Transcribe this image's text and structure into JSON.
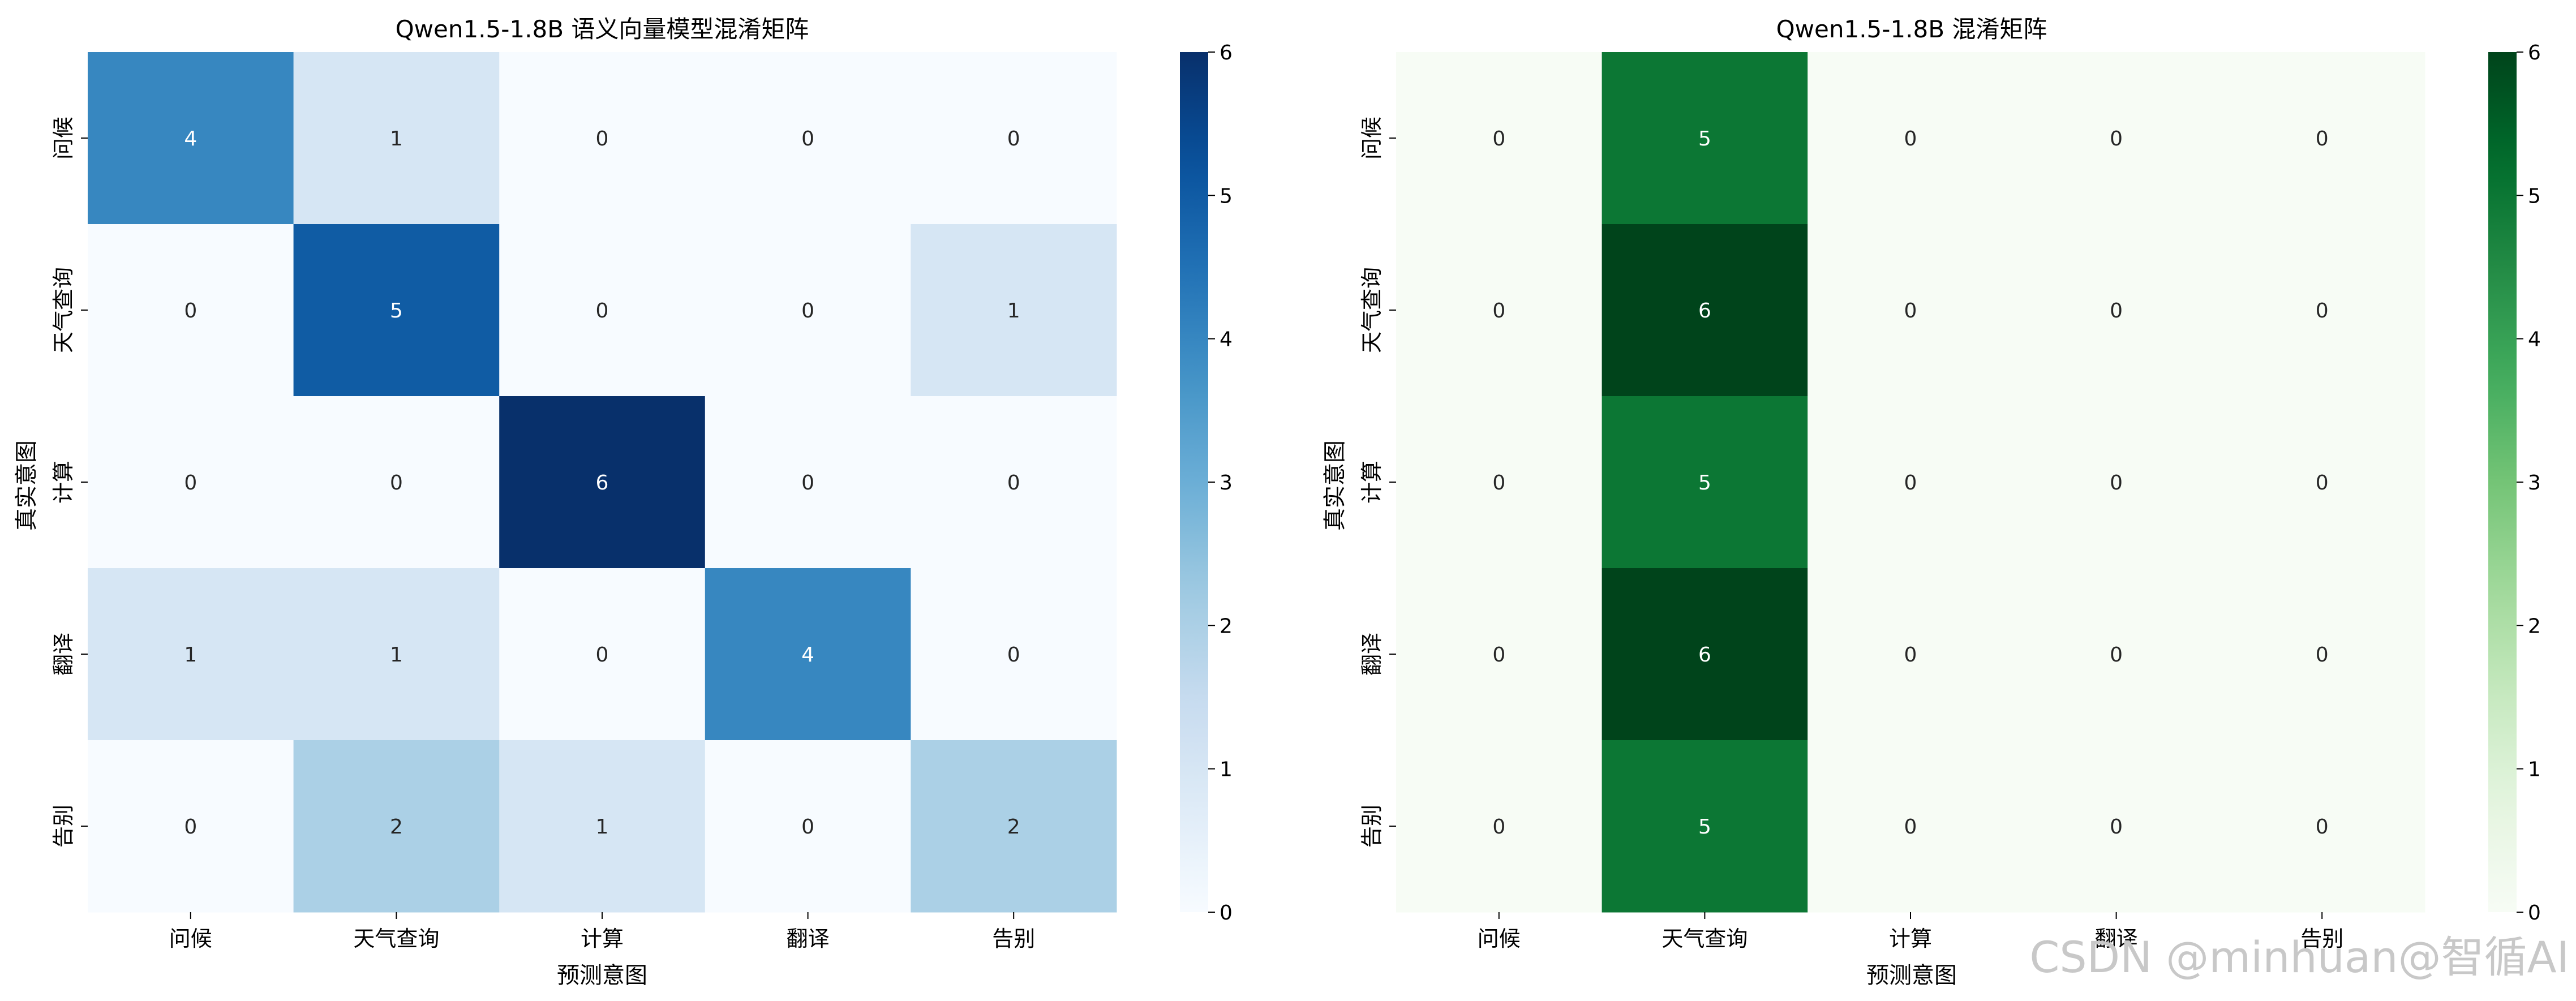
{
  "chart_data": [
    {
      "type": "heatmap",
      "title": "Qwen1.5-1.8B 语义向量模型混淆矩阵",
      "xlabel": "预测意图",
      "ylabel": "真实意图",
      "x_categories": [
        "问候",
        "天气查询",
        "计算",
        "翻译",
        "告别"
      ],
      "y_categories": [
        "问候",
        "天气查询",
        "计算",
        "翻译",
        "告别"
      ],
      "values": [
        [
          4,
          1,
          0,
          0,
          0
        ],
        [
          0,
          5,
          0,
          0,
          1
        ],
        [
          0,
          0,
          6,
          0,
          0
        ],
        [
          1,
          1,
          0,
          4,
          0
        ],
        [
          0,
          2,
          1,
          0,
          2
        ]
      ],
      "colorbar": {
        "min": 0,
        "max": 6,
        "ticks": [
          "0",
          "1",
          "2",
          "3",
          "4",
          "5",
          "6"
        ],
        "colormap": "Blues"
      },
      "colors": {
        "low": "#f7fbff",
        "high": "#08306b"
      }
    },
    {
      "type": "heatmap",
      "title": "Qwen1.5-1.8B 混淆矩阵",
      "xlabel": "预测意图",
      "ylabel": "真实意图",
      "x_categories": [
        "问候",
        "天气查询",
        "计算",
        "翻译",
        "告别"
      ],
      "y_categories": [
        "问候",
        "天气查询",
        "计算",
        "翻译",
        "告别"
      ],
      "values": [
        [
          0,
          5,
          0,
          0,
          0
        ],
        [
          0,
          6,
          0,
          0,
          0
        ],
        [
          0,
          5,
          0,
          0,
          0
        ],
        [
          0,
          6,
          0,
          0,
          0
        ],
        [
          0,
          5,
          0,
          0,
          0
        ]
      ],
      "colorbar": {
        "min": 0,
        "max": 6,
        "ticks": [
          "0",
          "1",
          "2",
          "3",
          "4",
          "5",
          "6"
        ],
        "colormap": "Greens"
      },
      "colors": {
        "low": "#f7fcf5",
        "high": "#00441b"
      }
    }
  ],
  "watermark": "CSDN @minhuan@智循AI"
}
